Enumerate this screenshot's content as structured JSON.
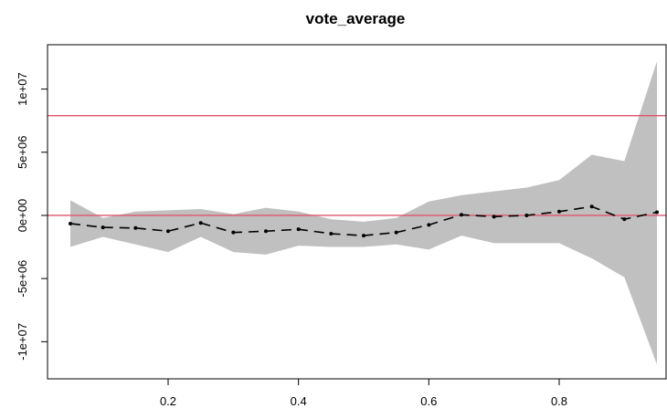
{
  "chart_data": {
    "type": "line",
    "title": "vote_average",
    "xlabel": "",
    "ylabel": "",
    "xlim": [
      0.05,
      0.95
    ],
    "ylim": [
      -12000000,
      12500000
    ],
    "x_ticks": [
      0.2,
      0.4,
      0.6,
      0.8
    ],
    "x_tick_labels": [
      "0.2",
      "0.4",
      "0.6",
      "0.8"
    ],
    "y_ticks": [
      -10000000,
      -5000000,
      0,
      5000000,
      10000000
    ],
    "y_tick_labels": [
      "-1e+07",
      "-5e+06",
      "0e+00",
      "5e+06",
      "1e+07"
    ],
    "grid": false,
    "x": [
      0.05,
      0.1,
      0.15,
      0.2,
      0.25,
      0.3,
      0.35,
      0.4,
      0.45,
      0.5,
      0.55,
      0.6,
      0.65,
      0.7,
      0.75,
      0.8,
      0.85,
      0.9,
      0.95
    ],
    "series": [
      {
        "values": [
          -650000,
          -950000,
          -1000000,
          -1250000,
          -600000,
          -1350000,
          -1250000,
          -1100000,
          -1450000,
          -1600000,
          -1350000,
          -750000,
          50000,
          -100000,
          0,
          300000,
          700000,
          -300000,
          250000
        ],
        "color": "#000000",
        "style": "dashed-with-points"
      }
    ],
    "band": {
      "lower": [
        -2500000,
        -1700000,
        -2300000,
        -2900000,
        -1700000,
        -2900000,
        -3100000,
        -2400000,
        -2500000,
        -2500000,
        -2300000,
        -2700000,
        -1600000,
        -2200000,
        -2200000,
        -2200000,
        -3400000,
        -4900000,
        -11800000
      ],
      "upper": [
        1200000,
        -200000,
        300000,
        400000,
        500000,
        100000,
        600000,
        300000,
        -300000,
        -500000,
        -200000,
        1100000,
        1600000,
        1900000,
        2200000,
        2800000,
        4800000,
        4300000,
        12200000
      ],
      "color": "#c0c0c0"
    },
    "reference_lines": [
      {
        "value": 7900000,
        "color": "#df536b"
      },
      {
        "value": 0,
        "color": "#df536b"
      }
    ]
  }
}
